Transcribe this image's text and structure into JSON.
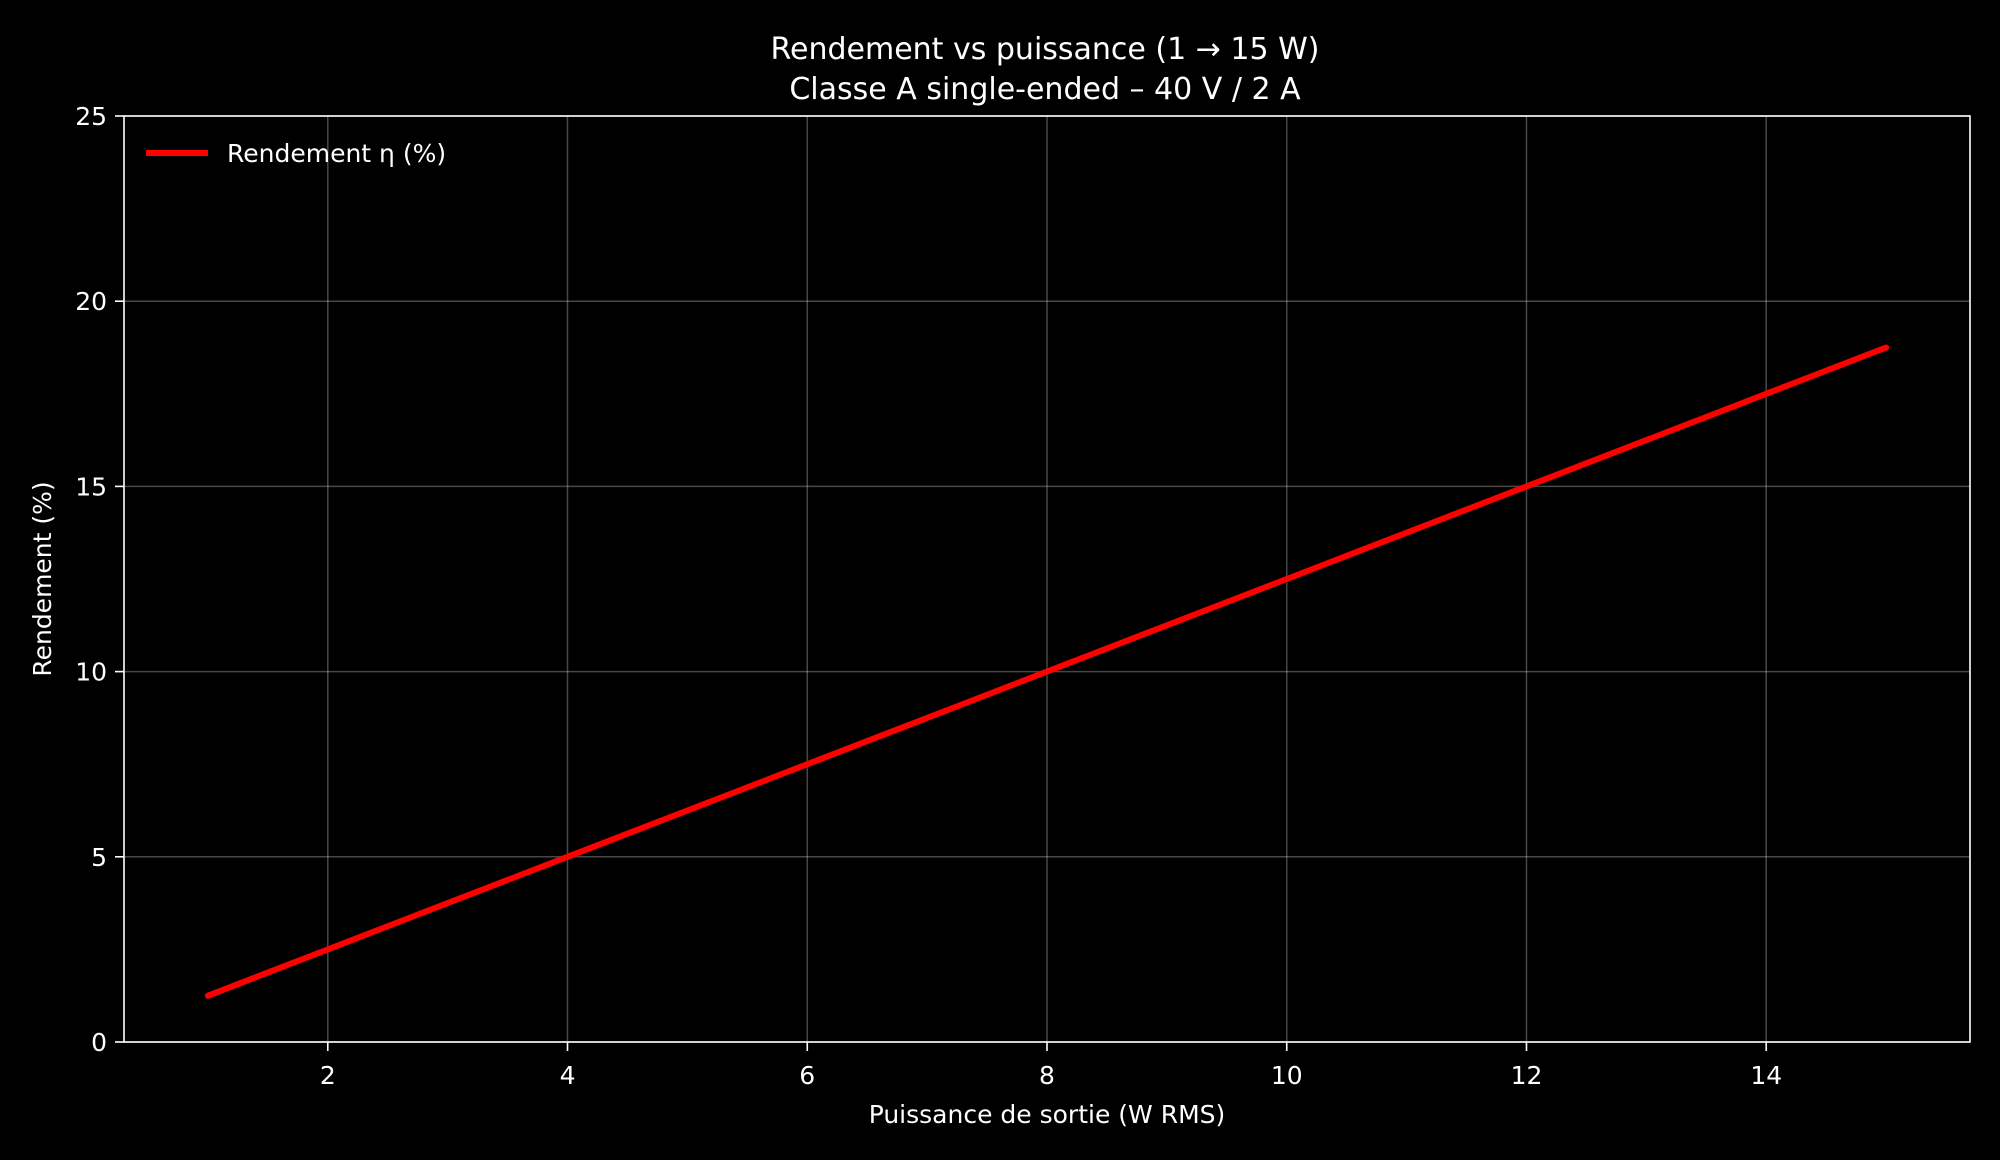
{
  "chart_data": {
    "type": "line",
    "title": "Rendement vs puissance (1 → 15 W)",
    "subtitle": "Classe A single-ended – 40 V / 2 A",
    "xlabel": "Puissance de sortie (W RMS)",
    "ylabel": "Rendement (%)",
    "xlim": [
      0.3,
      15.7
    ],
    "ylim": [
      0,
      25
    ],
    "xticks": [
      2,
      4,
      6,
      8,
      10,
      12,
      14
    ],
    "yticks": [
      0,
      5,
      10,
      15,
      20,
      25
    ],
    "grid": true,
    "legend_position": "top-left",
    "background_color": "#000000",
    "series": [
      {
        "name": "Rendement η (%)",
        "color": "#ff0000",
        "x": [
          1,
          2,
          3,
          4,
          5,
          6,
          7,
          8,
          9,
          10,
          11,
          12,
          13,
          14,
          15
        ],
        "y": [
          1.25,
          2.5,
          3.75,
          5,
          6.25,
          7.5,
          8.75,
          10,
          11.25,
          12.5,
          13.75,
          15,
          16.25,
          17.5,
          18.75
        ]
      }
    ]
  }
}
